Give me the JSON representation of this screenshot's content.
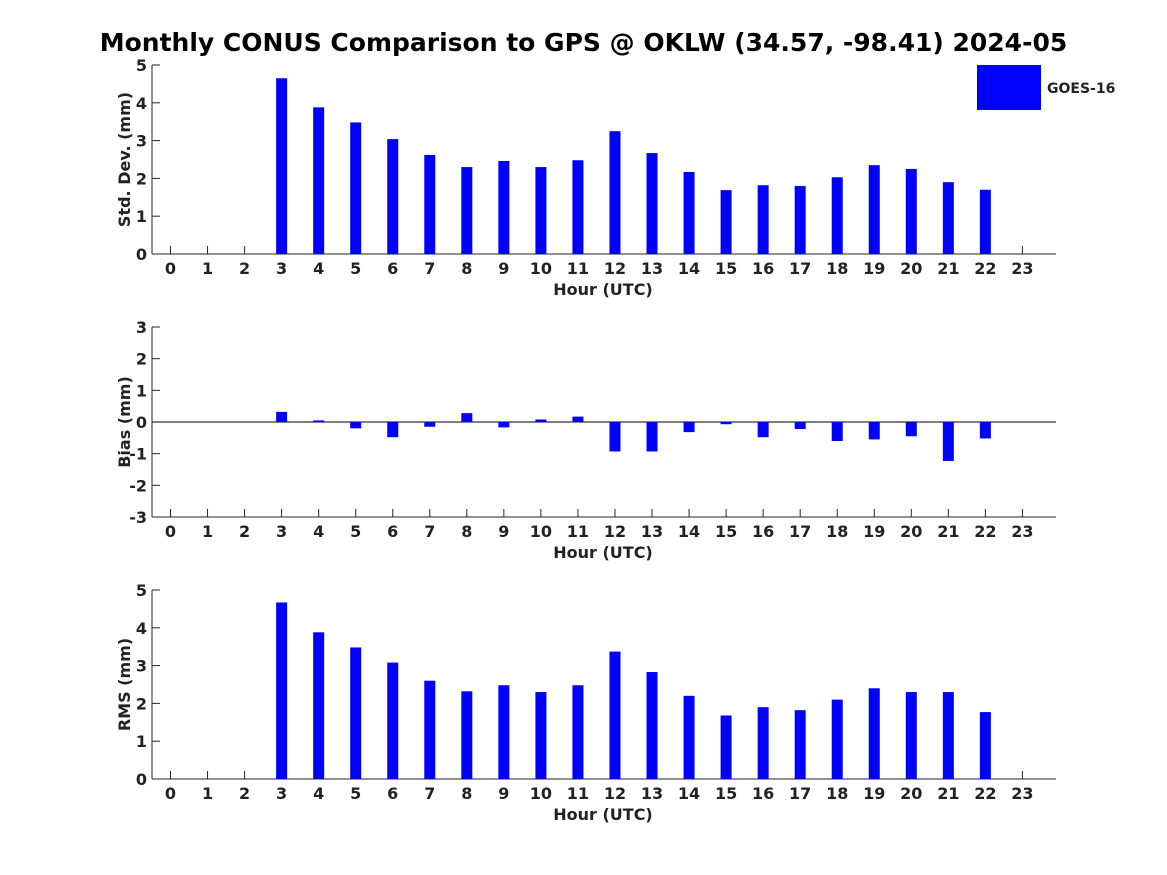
{
  "title": "Monthly CONUS Comparison to GPS @ OKLW (34.57, -98.41) 2024-05",
  "legend": {
    "label": "GOES-16",
    "color": "#0000ff"
  },
  "chart_data": [
    {
      "type": "bar",
      "name": "std-dev",
      "ylabel": "Std. Dev. (mm)",
      "xlabel": "Hour (UTC)",
      "ylim": [
        0,
        5
      ],
      "yticks": [
        0,
        1,
        2,
        3,
        4,
        5
      ],
      "categories": [
        "0",
        "1",
        "2",
        "3",
        "4",
        "5",
        "6",
        "7",
        "8",
        "9",
        "10",
        "11",
        "12",
        "13",
        "14",
        "15",
        "16",
        "17",
        "18",
        "19",
        "20",
        "21",
        "22",
        "23"
      ],
      "series": [
        {
          "name": "GOES-16",
          "values": [
            null,
            null,
            null,
            4.65,
            3.88,
            3.48,
            3.04,
            2.62,
            2.3,
            2.46,
            2.3,
            2.48,
            3.25,
            2.67,
            2.17,
            1.69,
            1.82,
            1.8,
            2.03,
            2.35,
            2.25,
            1.9,
            1.7,
            null
          ]
        }
      ]
    },
    {
      "type": "bar",
      "name": "bias",
      "ylabel": "Bias (mm)",
      "xlabel": "Hour (UTC)",
      "ylim": [
        -3,
        3
      ],
      "yticks": [
        -3,
        -2,
        -1,
        0,
        1,
        2,
        3
      ],
      "categories": [
        "0",
        "1",
        "2",
        "3",
        "4",
        "5",
        "6",
        "7",
        "8",
        "9",
        "10",
        "11",
        "12",
        "13",
        "14",
        "15",
        "16",
        "17",
        "18",
        "19",
        "20",
        "21",
        "22",
        "23"
      ],
      "series": [
        {
          "name": "GOES-16",
          "values": [
            null,
            null,
            null,
            0.32,
            0.05,
            -0.2,
            -0.48,
            -0.15,
            0.28,
            -0.17,
            0.08,
            0.17,
            -0.93,
            -0.93,
            -0.32,
            -0.07,
            -0.48,
            -0.22,
            -0.6,
            -0.55,
            -0.45,
            -1.23,
            -0.52,
            null
          ]
        }
      ]
    },
    {
      "type": "bar",
      "name": "rms",
      "ylabel": "RMS (mm)",
      "xlabel": "Hour (UTC)",
      "ylim": [
        0,
        5
      ],
      "yticks": [
        0,
        1,
        2,
        3,
        4,
        5
      ],
      "categories": [
        "0",
        "1",
        "2",
        "3",
        "4",
        "5",
        "6",
        "7",
        "8",
        "9",
        "10",
        "11",
        "12",
        "13",
        "14",
        "15",
        "16",
        "17",
        "18",
        "19",
        "20",
        "21",
        "22",
        "23"
      ],
      "series": [
        {
          "name": "GOES-16",
          "values": [
            null,
            null,
            null,
            4.67,
            3.88,
            3.48,
            3.08,
            2.6,
            2.32,
            2.48,
            2.3,
            2.48,
            3.37,
            2.83,
            2.2,
            1.68,
            1.9,
            1.82,
            2.1,
            2.4,
            2.3,
            2.3,
            1.77,
            null
          ]
        }
      ]
    }
  ]
}
